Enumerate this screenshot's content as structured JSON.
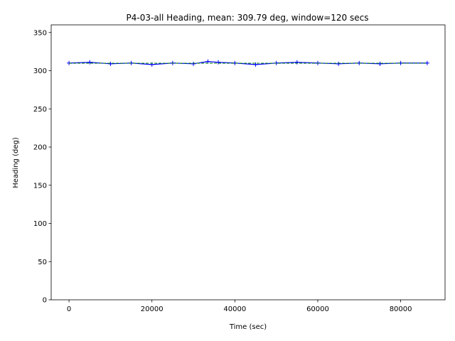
{
  "chart_data": {
    "type": "line",
    "title": "P4-03-all Heading, mean: 309.79 deg, window=120 secs",
    "xlabel": "Time (sec)",
    "ylabel": "Heading (deg)",
    "xlim": [
      -4300,
      90700
    ],
    "ylim": [
      0,
      360
    ],
    "xticks": [
      0,
      20000,
      40000,
      60000,
      80000
    ],
    "yticks": [
      0,
      50,
      100,
      150,
      200,
      250,
      300,
      350
    ],
    "grid": false,
    "series": [
      {
        "color": "#0000ff",
        "style": "line-with-plus-markers",
        "x": [
          0,
          5000,
          10000,
          15000,
          20000,
          25000,
          30000,
          33500,
          36000,
          40000,
          45000,
          50000,
          55000,
          60000,
          65000,
          70000,
          75000,
          80000,
          86400
        ],
        "y": [
          310,
          311,
          309,
          310,
          308,
          310,
          309,
          312,
          311,
          310,
          308,
          310,
          311,
          310,
          309,
          310,
          309,
          310,
          310
        ]
      },
      {
        "color": "#008000",
        "style": "dashed",
        "x": [
          0,
          86400
        ],
        "y": [
          309.79,
          309.79
        ]
      }
    ]
  }
}
